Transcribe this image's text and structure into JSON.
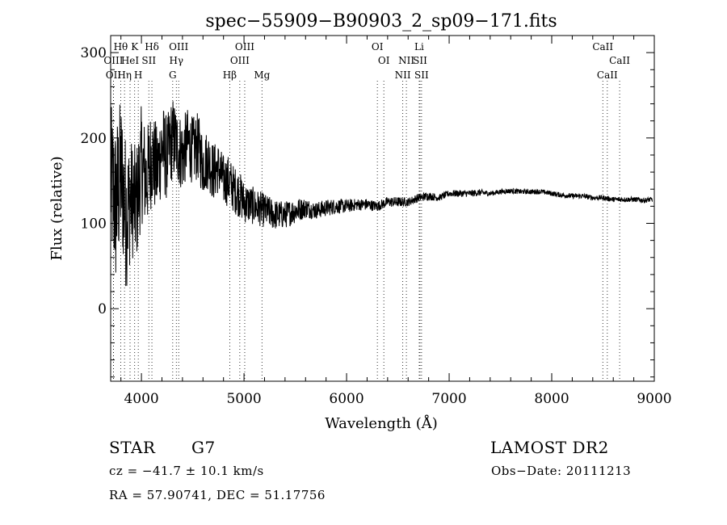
{
  "chart_data": {
    "type": "line",
    "title": "spec−55909−B90903_2_sp09−171.fits",
    "xlabel": "Wavelength (Å)",
    "ylabel": "Flux (relative)",
    "xlim": [
      3700,
      9000
    ],
    "ylim": [
      -85,
      320
    ],
    "x_ticks": [
      4000,
      5000,
      6000,
      7000,
      8000,
      9000
    ],
    "y_ticks": [
      0,
      100,
      200,
      300
    ],
    "grid": false,
    "series": [
      {
        "color": "#000000",
        "x": [
          3700,
          3750,
          3800,
          3850,
          3900,
          3950,
          4000,
          4050,
          4100,
          4150,
          4200,
          4250,
          4300,
          4350,
          4400,
          4450,
          4500,
          4550,
          4600,
          4650,
          4700,
          4750,
          4800,
          4850,
          4900,
          4950,
          5000,
          5100,
          5200,
          5300,
          5400,
          5500,
          5600,
          5700,
          5800,
          5900,
          6000,
          6100,
          6200,
          6300,
          6400,
          6500,
          6600,
          6700,
          6800,
          6900,
          7000,
          7100,
          7200,
          7300,
          7400,
          7500,
          7600,
          7700,
          7800,
          7900,
          8000,
          8100,
          8200,
          8300,
          8400,
          8500,
          8600,
          8700,
          8800,
          8900,
          8980
        ],
        "y": [
          150,
          120,
          160,
          110,
          130,
          120,
          170,
          150,
          180,
          160,
          190,
          175,
          200,
          190,
          180,
          195,
          185,
          190,
          170,
          175,
          160,
          165,
          150,
          150,
          140,
          135,
          125,
          120,
          115,
          110,
          110,
          115,
          118,
          115,
          118,
          120,
          120,
          122,
          122,
          120,
          125,
          125,
          125,
          130,
          132,
          130,
          135,
          135,
          135,
          136,
          135,
          137,
          138,
          137,
          137,
          137,
          135,
          133,
          132,
          132,
          130,
          130,
          128,
          128,
          128,
          127,
          128
        ],
        "amp": [
          90,
          100,
          90,
          90,
          70,
          70,
          70,
          60,
          60,
          55,
          55,
          50,
          50,
          45,
          45,
          40,
          40,
          40,
          38,
          35,
          35,
          30,
          30,
          30,
          28,
          28,
          25,
          22,
          20,
          18,
          16,
          15,
          12,
          10,
          10,
          9,
          8,
          7,
          7,
          6,
          6,
          6,
          5,
          5,
          5,
          4,
          4,
          4,
          4,
          4,
          3,
          3,
          3,
          3,
          3,
          3,
          3,
          3,
          3,
          3,
          3,
          3,
          3,
          3,
          3,
          3,
          3
        ]
      }
    ],
    "lines_top": [
      {
        "label": "Hθ",
        "x": 3798,
        "row": 1
      },
      {
        "label": "K",
        "x": 3934,
        "row": 1
      },
      {
        "label": "Hδ",
        "x": 4102,
        "row": 1
      },
      {
        "label": "OIII",
        "x": 4363,
        "row": 1
      },
      {
        "label": "OIII",
        "x": 5007,
        "row": 1
      },
      {
        "label": "OI",
        "x": 6300,
        "row": 1
      },
      {
        "label": "Li",
        "x": 6708,
        "row": 1
      },
      {
        "label": "CaII",
        "x": 8498,
        "row": 1
      },
      {
        "label": "OIII",
        "x": 3727,
        "row": 2
      },
      {
        "label": "HeI",
        "x": 3889,
        "row": 2
      },
      {
        "label": "SII",
        "x": 4072,
        "row": 2
      },
      {
        "label": "Hγ",
        "x": 4340,
        "row": 2
      },
      {
        "label": "OIII",
        "x": 4959,
        "row": 2
      },
      {
        "label": "OI",
        "x": 6363,
        "row": 2
      },
      {
        "label": "NII",
        "x": 6583,
        "row": 2
      },
      {
        "label": "SII",
        "x": 6716,
        "row": 2
      },
      {
        "label": "CaII",
        "x": 8662,
        "row": 2
      },
      {
        "label": "OII",
        "x": 3727,
        "row": 3
      },
      {
        "label": "Hη",
        "x": 3835,
        "row": 3
      },
      {
        "label": "H",
        "x": 3969,
        "row": 3
      },
      {
        "label": "G",
        "x": 4305,
        "row": 3
      },
      {
        "label": "Hβ",
        "x": 4861,
        "row": 3
      },
      {
        "label": "Mg",
        "x": 5175,
        "row": 3
      },
      {
        "label": "NII",
        "x": 6548,
        "row": 3
      },
      {
        "label": "SII",
        "x": 6731,
        "row": 3
      },
      {
        "label": "CaII",
        "x": 8542,
        "row": 3
      }
    ]
  },
  "info": {
    "class_label": "STAR",
    "subclass": "G7",
    "survey": "LAMOST DR2",
    "cz": "cz = −41.7 ± 10.1 km/s",
    "obs_date": "Obs−Date: 20111213",
    "coords": "RA =  57.90741, DEC =  51.17756"
  }
}
